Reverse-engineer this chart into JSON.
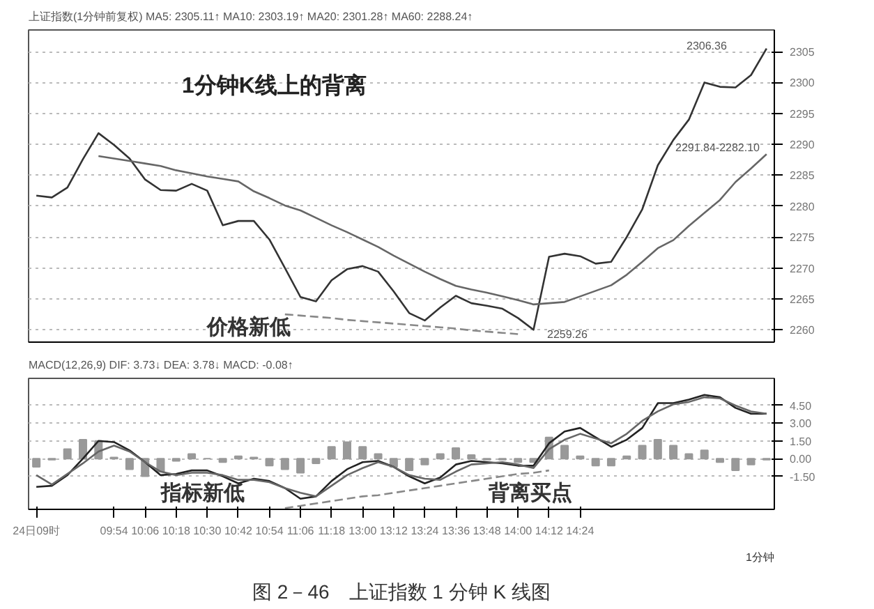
{
  "chart_data": [
    {
      "type": "line",
      "title": "1分钟K线上的背离",
      "subtitle": "上证指数(1分钟前复权) MA5: 2305.11↑ MA10: 2303.19↑ MA20: 2301.28↑ MA60: 2288.24↑",
      "ylim": [
        2258,
        2308.5
      ],
      "yticks": [
        2260,
        2265,
        2270,
        2275,
        2280,
        2285,
        2290,
        2295,
        2300,
        2305
      ],
      "grid": "y",
      "tick_labels": "y",
      "categories": [
        null,
        null,
        null,
        null,
        null,
        null,
        null,
        null,
        null,
        null,
        null,
        null,
        null,
        null,
        null,
        null,
        null,
        null,
        null,
        null,
        null,
        null,
        null,
        null,
        null,
        null,
        null,
        null,
        null,
        null,
        null,
        null,
        null,
        null,
        null,
        null,
        null,
        null,
        null,
        null,
        null,
        null,
        null,
        null,
        null,
        null,
        null,
        null
      ],
      "series": [
        {
          "color": "#333333",
          "values": [
            2281.7,
            2281.4,
            2283.0,
            2287.6,
            2291.8,
            2289.9,
            2287.7,
            2284.3,
            2282.6,
            2282.5,
            2283.6,
            2282.5,
            2276.9,
            2277.6,
            2277.6,
            2274.6,
            2270.0,
            2265.3,
            2264.6,
            2268.0,
            2269.8,
            2270.3,
            2269.4,
            2266.2,
            2262.7,
            2261.5,
            2263.6,
            2265.5,
            2264.3,
            2263.9,
            2263.4,
            2261.9,
            2260.0,
            2271.8,
            2272.3,
            2271.9,
            2270.7,
            2271.0,
            2275.0,
            2279.5,
            2286.6,
            2290.7,
            2294.0,
            2300.0,
            2299.3,
            2299.2,
            2301.2,
            2305.5
          ]
        },
        {
          "color": "#666666",
          "values": [
            null,
            null,
            null,
            null,
            2288.1,
            2287.7,
            2287.3,
            2286.9,
            2286.5,
            2285.8,
            2285.3,
            2284.8,
            2284.4,
            2284.0,
            2282.4,
            2281.3,
            2280.1,
            2279.3,
            2278.1,
            2276.9,
            2275.8,
            2274.6,
            2273.4,
            2272.0,
            2270.7,
            2269.4,
            2268.2,
            2267.1,
            2266.5,
            2266.0,
            2265.4,
            2264.8,
            2264.1,
            2264.3,
            2264.5,
            2265.4,
            2266.3,
            2267.2,
            2268.9,
            2271.0,
            2273.2,
            2274.5,
            2276.8,
            2278.9,
            2281.0,
            2283.9,
            2286.1,
            2288.4
          ]
        },
        {
          "color": "#888888",
          "line_style": "dashed",
          "values": [
            null,
            null,
            null,
            null,
            null,
            null,
            null,
            null,
            null,
            null,
            null,
            null,
            null,
            null,
            null,
            null,
            2262.5,
            2262.3,
            2262.1,
            2261.9,
            2261.6,
            2261.4,
            2261.2,
            2261.0,
            2260.8,
            2260.6,
            2260.4,
            2260.2,
            2259.9,
            2259.7,
            2259.5,
            2259.3,
            null,
            null,
            null,
            null,
            null,
            null,
            null,
            null,
            null,
            null,
            null,
            null,
            null,
            null,
            null,
            null
          ]
        }
      ],
      "annotations": [
        "价格新低",
        "2259.26",
        "2306.36",
        "2291.84-2282.10"
      ]
    },
    {
      "type": "line",
      "subtitle": "MACD(12,26,9) DIF: 3.73↓ DEA: 3.78↓ MACD: -0.08↑",
      "ylim": [
        -4.3,
        6.8
      ],
      "yticks": [
        {
          "value": -1.5,
          "label": "-1.50"
        },
        {
          "value": 0,
          "label": "0.00"
        },
        {
          "value": 1.5,
          "label": "1.50"
        },
        {
          "value": 3,
          "label": "3.00"
        },
        {
          "value": 4.5,
          "label": "4.50"
        }
      ],
      "grid": "y",
      "categories": [
        "24日09时",
        null,
        null,
        null,
        null,
        "09:54",
        null,
        "10:06",
        null,
        "10:18",
        null,
        "10:30",
        null,
        "10:42",
        null,
        "10:54",
        null,
        "11:06",
        null,
        "11:18",
        null,
        "13:00",
        null,
        "13:12",
        null,
        "13:24",
        null,
        "13:36",
        null,
        "13:48",
        null,
        "14:00",
        null,
        "14:12",
        null,
        "14:24",
        null,
        null,
        null,
        null,
        null,
        null,
        null,
        null,
        null,
        null,
        null,
        null
      ],
      "series": [
        {
          "type": "bar",
          "color": "#999999",
          "values": [
            -0.7,
            -0.1,
            0.8,
            1.6,
            1.5,
            0.1,
            -0.9,
            -1.5,
            -1.1,
            -0.2,
            0.4,
            0.0,
            -0.3,
            0.2,
            0.1,
            -0.6,
            -0.9,
            -1.2,
            -0.4,
            1.0,
            1.4,
            1.0,
            0.4,
            -0.7,
            -1.0,
            -0.5,
            0.4,
            0.9,
            0.3,
            -0.1,
            -0.1,
            -0.3,
            -0.3,
            1.8,
            1.1,
            0.2,
            -0.6,
            -0.6,
            0.2,
            1.1,
            1.6,
            1.1,
            0.4,
            0.7,
            -0.3,
            -1.0,
            -0.5,
            -0.1
          ]
        },
        {
          "color": "#222222",
          "values": [
            -2.4,
            -2.3,
            -1.4,
            0.0,
            1.5,
            1.4,
            0.7,
            -0.3,
            -1.4,
            -1.3,
            -1.0,
            -1.0,
            -1.5,
            -2.1,
            -1.7,
            -1.9,
            -2.5,
            -3.4,
            -3.2,
            -1.9,
            -0.9,
            -0.3,
            -0.2,
            -0.7,
            -1.5,
            -2.1,
            -1.6,
            -0.5,
            -0.2,
            -0.3,
            -0.4,
            -0.6,
            -0.6,
            1.3,
            2.3,
            2.6,
            1.8,
            1.0,
            1.6,
            2.6,
            4.7,
            4.7,
            5.0,
            5.4,
            5.2,
            4.3,
            3.8,
            3.8
          ]
        },
        {
          "color": "#666666",
          "values": [
            -1.4,
            -2.2,
            -1.3,
            -0.4,
            0.6,
            1.1,
            0.6,
            -0.3,
            -1.1,
            -1.4,
            -1.2,
            -1.2,
            -1.4,
            -1.8,
            -1.8,
            -2.0,
            -2.5,
            -2.9,
            -3.2,
            -2.3,
            -1.4,
            -0.8,
            -0.3,
            -0.7,
            -1.4,
            -1.7,
            -1.8,
            -1.1,
            -0.5,
            -0.4,
            -0.3,
            -0.5,
            -0.8,
            0.8,
            1.6,
            2.1,
            1.7,
            1.3,
            2.1,
            3.2,
            4.0,
            4.6,
            4.8,
            5.2,
            5.1,
            4.5,
            4.0,
            3.8
          ]
        },
        {
          "color": "#888888",
          "line_style": "dashed",
          "values": [
            null,
            null,
            null,
            null,
            null,
            null,
            null,
            null,
            null,
            null,
            null,
            null,
            null,
            null,
            null,
            null,
            -4.2,
            -4.0,
            -3.8,
            -3.6,
            -3.4,
            -3.2,
            -3.1,
            -2.9,
            -2.7,
            -2.5,
            -2.3,
            -2.1,
            -1.9,
            -1.7,
            -1.5,
            -1.3,
            -1.2,
            -1.0,
            null,
            null,
            null,
            null,
            null,
            null,
            null,
            null,
            null,
            null,
            null,
            null,
            null,
            null
          ]
        }
      ],
      "annotations": [
        "指标新低",
        "背离买点",
        "1分钟",
        "图 2－46　上证指数 1 分钟 K 线图"
      ]
    }
  ]
}
